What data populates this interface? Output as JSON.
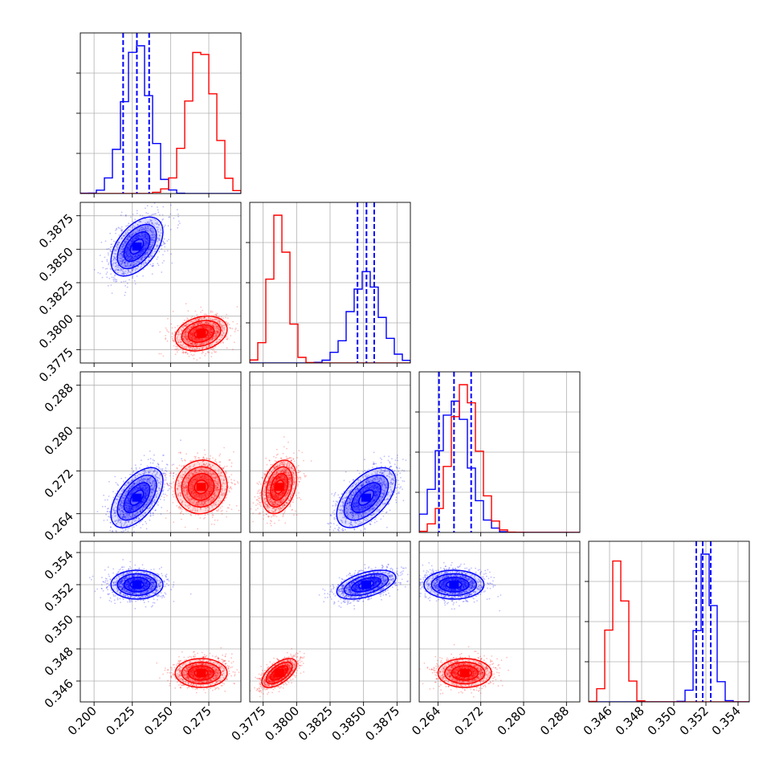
{
  "chart_data": {
    "type": "corner",
    "grid": true,
    "colors": {
      "blue": "#0000ff",
      "red": "#ff0000"
    },
    "params": [
      {
        "range": [
          0.191,
          0.296
        ],
        "ticks": [
          0.2,
          0.225,
          0.25,
          0.275
        ],
        "tick_labels": [
          "0.200",
          "0.225",
          "0.250",
          "0.275"
        ]
      },
      {
        "range": [
          0.3765,
          0.3885
        ],
        "ticks": [
          0.3775,
          0.38,
          0.3825,
          0.385,
          0.3875
        ],
        "tick_labels": [
          "0.3775",
          "0.3800",
          "0.3825",
          "0.3850",
          "0.3875"
        ]
      },
      {
        "range": [
          0.2605,
          0.2905
        ],
        "ticks": [
          0.264,
          0.272,
          0.28,
          0.288
        ],
        "tick_labels": [
          "0.264",
          "0.272",
          "0.280",
          "0.288"
        ]
      },
      {
        "range": [
          0.3447,
          0.3547
        ],
        "ticks": [
          0.346,
          0.348,
          0.35,
          0.352,
          0.354
        ],
        "tick_labels": [
          "0.346",
          "0.348",
          "0.350",
          "0.352",
          "0.354"
        ]
      }
    ],
    "series": [
      {
        "color": "blue",
        "mean": [
          0.228,
          0.3852,
          0.267,
          0.352
        ],
        "sd": [
          0.0085,
          0.0011,
          0.0028,
          0.00045
        ],
        "corr": [
          [
            1,
            0.5,
            0.55,
            0.0
          ],
          [
            0.5,
            1,
            0.55,
            0.5
          ],
          [
            0.55,
            0.55,
            1,
            0.0
          ],
          [
            0.0,
            0.5,
            0.0,
            1
          ]
        ],
        "quantiles": [
          [
            0.219,
            0.228,
            0.236
          ],
          [
            0.38455,
            0.38522,
            0.3858
          ],
          [
            0.2642,
            0.267,
            0.2702
          ],
          [
            0.3514,
            0.3518,
            0.3523
          ]
        ]
      },
      {
        "color": "red",
        "mean": [
          0.27,
          0.3787,
          0.269,
          0.3465
        ],
        "sd": [
          0.0085,
          0.00065,
          0.0025,
          0.00045
        ],
        "corr": [
          [
            1,
            0.25,
            0.05,
            0.0
          ],
          [
            0.25,
            1,
            0.3,
            0.6
          ],
          [
            0.05,
            0.3,
            1,
            0.0
          ],
          [
            0.0,
            0.6,
            0.0,
            1
          ]
        ],
        "quantiles": null
      }
    ]
  }
}
